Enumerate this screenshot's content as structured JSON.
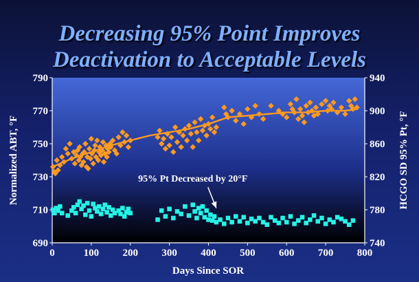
{
  "chart_data": {
    "type": "scatter",
    "title_lines": [
      "Decreasing 95% Point Improves",
      "Deactivation to Acceptable Levels"
    ],
    "xlabel": "Days Since SOR",
    "ylabel_left": "Normalized ABT, °F",
    "ylabel_right": "HCGO SD 95% Pt, °F",
    "xlim": [
      0,
      800
    ],
    "ylim_left": [
      690,
      790
    ],
    "ylim_right": [
      740,
      940
    ],
    "x_ticks": [
      0,
      100,
      200,
      300,
      400,
      500,
      600,
      700,
      800
    ],
    "y_ticks_left": [
      690,
      710,
      730,
      750,
      770,
      790
    ],
    "y_ticks_right": [
      740,
      780,
      820,
      860,
      900,
      940
    ],
    "grid": false,
    "annotation": {
      "text": "95% Pt Decreased by 20°F",
      "text_x": 360,
      "text_y_right": 814,
      "arrow_to_x": 420,
      "arrow_to_y_right": 782
    },
    "colors": {
      "abt": "#ff9a1f",
      "pt95": "#26f2e6",
      "trend": "#ff9a1f",
      "title": "#7fb0ff"
    },
    "series": [
      {
        "axis": "left",
        "color": "#ff9a1f",
        "marker": "diamond",
        "x": [
          2,
          5,
          8,
          12,
          15,
          20,
          25,
          30,
          35,
          40,
          45,
          50,
          55,
          58,
          62,
          65,
          68,
          70,
          72,
          75,
          78,
          80,
          82,
          85,
          88,
          90,
          92,
          95,
          98,
          100,
          102,
          105,
          108,
          110,
          112,
          115,
          118,
          120,
          122,
          125,
          128,
          130,
          132,
          135,
          138,
          140,
          142,
          145,
          148,
          150,
          155,
          160,
          165,
          170,
          175,
          180,
          185,
          190,
          195,
          200,
          270,
          275,
          280,
          285,
          290,
          295,
          300,
          305,
          310,
          315,
          320,
          325,
          330,
          335,
          340,
          345,
          350,
          355,
          360,
          365,
          370,
          375,
          380,
          385,
          390,
          395,
          400,
          405,
          410,
          415,
          420,
          440,
          445,
          450,
          460,
          470,
          480,
          490,
          500,
          510,
          520,
          530,
          540,
          560,
          580,
          590,
          600,
          610,
          615,
          620,
          625,
          630,
          635,
          640,
          645,
          650,
          655,
          660,
          665,
          670,
          675,
          680,
          690,
          700,
          705,
          710,
          715,
          720,
          730,
          740,
          750,
          760,
          765,
          770,
          775,
          780
        ],
        "y": [
          736,
          733,
          732,
          740,
          734,
          737,
          742,
          739,
          747,
          744,
          750,
          741,
          745,
          738,
          743,
          746,
          740,
          748,
          742,
          737,
          744,
          739,
          745,
          750,
          736,
          742,
          735,
          747,
          741,
          753,
          744,
          738,
          746,
          749,
          742,
          752,
          740,
          745,
          748,
          743,
          746,
          751,
          739,
          744,
          749,
          742,
          747,
          745,
          750,
          748,
          752,
          746,
          744,
          754,
          749,
          757,
          751,
          755,
          748,
          752,
          754,
          758,
          750,
          753,
          747,
          756,
          749,
          754,
          745,
          760,
          751,
          757,
          748,
          755,
          759,
          752,
          761,
          756,
          748,
          763,
          757,
          752,
          765,
          758,
          761,
          755,
          762,
          759,
          766,
          757,
          760,
          772,
          768,
          766,
          770,
          764,
          768,
          762,
          771,
          766,
          773,
          768,
          765,
          773,
          770,
          768,
          766,
          774,
          771,
          769,
          777,
          765,
          771,
          767,
          763,
          773,
          769,
          775,
          770,
          767,
          772,
          768,
          774,
          776,
          770,
          773,
          771,
          775,
          769,
          772,
          768,
          776,
          773,
          771,
          777,
          772
        ]
      },
      {
        "axis": "right",
        "color": "#26f2e6",
        "marker": "square",
        "x": [
          2,
          6,
          10,
          15,
          20,
          25,
          40,
          50,
          55,
          60,
          65,
          70,
          75,
          80,
          85,
          90,
          95,
          100,
          105,
          110,
          115,
          120,
          125,
          130,
          135,
          140,
          145,
          150,
          155,
          160,
          170,
          175,
          180,
          185,
          190,
          195,
          200,
          270,
          280,
          290,
          300,
          310,
          320,
          330,
          340,
          350,
          360,
          365,
          370,
          375,
          380,
          385,
          390,
          395,
          400,
          405,
          410,
          415,
          420,
          430,
          440,
          450,
          460,
          470,
          480,
          490,
          500,
          510,
          520,
          530,
          540,
          550,
          560,
          570,
          580,
          590,
          600,
          610,
          620,
          630,
          640,
          650,
          660,
          670,
          680,
          690,
          700,
          710,
          720,
          730,
          740,
          750,
          760,
          770
        ],
        "y": [
          780,
          776,
          782,
          779,
          784,
          776,
          773,
          779,
          783,
          776,
          786,
          790,
          781,
          785,
          774,
          788,
          779,
          772,
          787,
          782,
          778,
          784,
          775,
          781,
          786,
          777,
          783,
          773,
          780,
          776,
          779,
          775,
          782,
          772,
          777,
          781,
          776,
          768,
          779,
          772,
          781,
          770,
          778,
          775,
          784,
          773,
          786,
          778,
          770,
          782,
          776,
          784,
          771,
          779,
          768,
          774,
          767,
          772,
          765,
          768,
          763,
          770,
          765,
          772,
          766,
          771,
          764,
          769,
          766,
          770,
          765,
          762,
          771,
          767,
          764,
          770,
          765,
          772,
          763,
          767,
          771,
          764,
          768,
          773,
          766,
          770,
          763,
          768,
          765,
          771,
          769,
          766,
          762,
          767
        ]
      }
    ],
    "trend_line": {
      "axis": "left",
      "x": [
        0,
        50,
        100,
        150,
        200,
        250,
        300,
        350,
        400,
        450,
        500,
        550,
        600,
        650,
        700,
        750,
        780
      ],
      "y": [
        736,
        741,
        745,
        749,
        752,
        755,
        757,
        759,
        762,
        766,
        767,
        768,
        769,
        769,
        770,
        770,
        771
      ]
    }
  }
}
